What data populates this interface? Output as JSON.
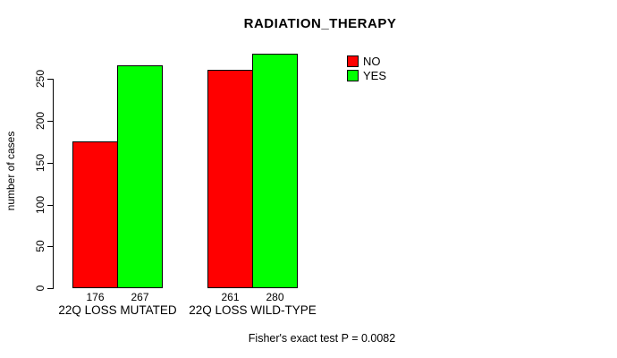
{
  "title": "RADIATION_THERAPY",
  "ylabel": "number of cases",
  "caption": "Fisher's exact test P = 0.0082",
  "legend": {
    "items": [
      {
        "label": "NO",
        "color": "#FF0000"
      },
      {
        "label": "YES",
        "color": "#00FF00"
      }
    ]
  },
  "chart_data": {
    "type": "bar",
    "title": "RADIATION_THERAPY",
    "xlabel": "",
    "ylabel": "number of cases",
    "categories": [
      "22Q LOSS MUTATED",
      "22Q LOSS WILD-TYPE"
    ],
    "series": [
      {
        "name": "NO",
        "color": "#FF0000",
        "values": [
          176,
          261
        ]
      },
      {
        "name": "YES",
        "color": "#00FF00",
        "values": [
          267,
          280
        ]
      }
    ],
    "bar_labels": [
      [
        "176",
        "261"
      ],
      [
        "267",
        "280"
      ]
    ],
    "y_ticks": [
      0,
      50,
      100,
      150,
      200,
      250
    ],
    "ylim": [
      0,
      250
    ],
    "grid": false,
    "legend_position": "top-right",
    "annotation": "Fisher's exact test P = 0.0082"
  }
}
